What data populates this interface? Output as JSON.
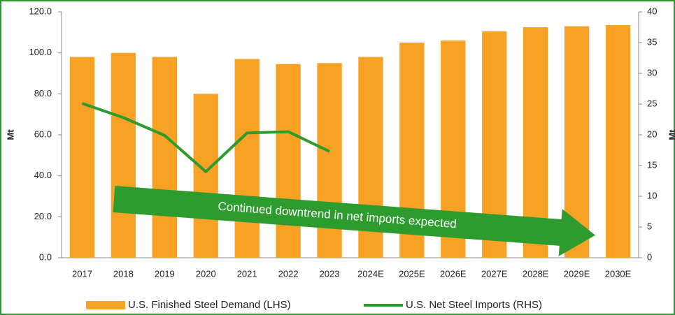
{
  "chart_data": {
    "type": "bar",
    "categories": [
      "2017",
      "2018",
      "2019",
      "2020",
      "2021",
      "2022",
      "2023",
      "2024E",
      "2025E",
      "2026E",
      "2027E",
      "2028E",
      "2029E",
      "2030E"
    ],
    "series": [
      {
        "name": "U.S. Finished Steel Demand (LHS)",
        "type": "bar",
        "color": "#f7a125",
        "values": [
          98,
          100,
          98,
          80,
          97,
          94.5,
          95,
          98,
          105,
          106,
          110.5,
          112.5,
          113,
          113.5
        ]
      },
      {
        "name": "U.S. Net Steel Imports (RHS)",
        "type": "line",
        "axis": "y2",
        "color": "#2e9b2e",
        "values": [
          25.1,
          22.8,
          19.9,
          14.0,
          20.3,
          20.5,
          17.3,
          null,
          null,
          null,
          null,
          null,
          null,
          null
        ]
      }
    ],
    "ylabel": "Mt",
    "y2label": "Mt",
    "ylim": [
      0,
      120
    ],
    "yticks": [
      {
        "value": 0,
        "label": "0.0"
      },
      {
        "value": 20,
        "label": "20.0"
      },
      {
        "value": 40,
        "label": "40.0"
      },
      {
        "value": 60,
        "label": "60.0"
      },
      {
        "value": 80,
        "label": "80.0"
      },
      {
        "value": 100,
        "label": "100.0"
      },
      {
        "value": 120,
        "label": "120.0"
      }
    ],
    "y2lim": [
      0,
      40
    ],
    "y2ticks": [
      0,
      5,
      10,
      15,
      20,
      25,
      30,
      35,
      40
    ],
    "annotation": "Continued downtrend in net imports expected",
    "grid": false
  }
}
